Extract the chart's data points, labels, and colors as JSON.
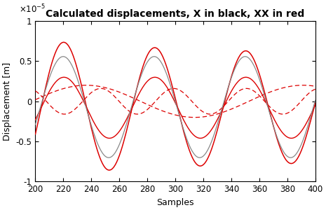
{
  "title": "Calculated displacements, X in black, XX in red",
  "xlabel": "Samples",
  "ylabel": "Displacement [m]",
  "xlim": [
    200,
    400
  ],
  "ylim": [
    -1e-05,
    1e-05
  ],
  "ytick_vals": [
    -1e-05,
    -5e-06,
    0,
    5e-06,
    1e-05
  ],
  "ytick_labels": [
    "-1",
    "-0.5",
    "0",
    "0.5",
    "1"
  ],
  "xticks": [
    200,
    220,
    240,
    260,
    280,
    300,
    320,
    340,
    360,
    380,
    400
  ],
  "solid_red": "#dd0000",
  "dashed_red": "#dd0000",
  "gray_color": "#888888",
  "title_fontsize": 10,
  "label_fontsize": 9,
  "tick_fontsize": 8.5
}
